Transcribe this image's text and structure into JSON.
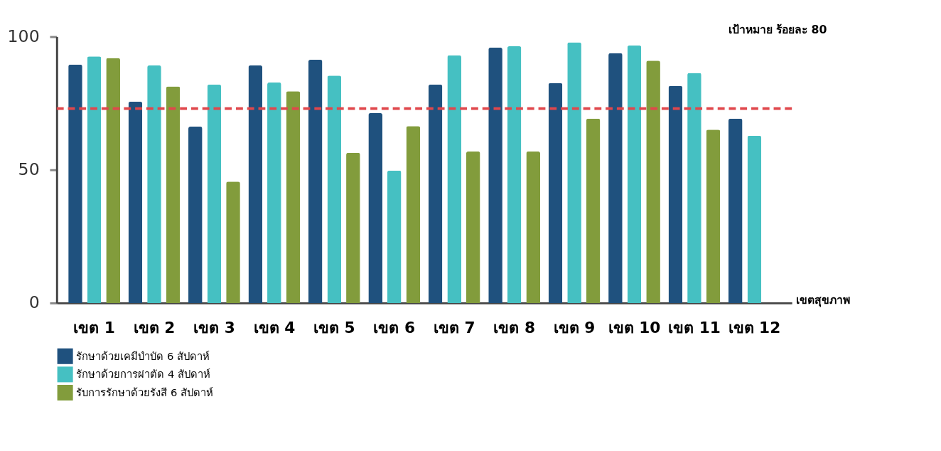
{
  "chart_data": {
    "type": "bar",
    "categories": [
      "เขต 1",
      "เขต 2",
      "เขต 3",
      "เขต 4",
      "เขต 5",
      "เขต 6",
      "เขต 7",
      "เขต 8",
      "เขต 9",
      "เขต 10",
      "เขต 11",
      "เขต 12"
    ],
    "xlabel": "เขตสุขภาพ",
    "series": [
      {
        "name": "รักษาด้วยเคมีบำบัด 6 สัปดาห์",
        "color": "#1f517e",
        "values": [
          89.5,
          75.6,
          66.2,
          89.2,
          91.3,
          71.3,
          82,
          95.9,
          82.6,
          93.8,
          81.5,
          69.2
        ]
      },
      {
        "name": "รักษาด้วยการผ่าตัด 4 สัปดาห์",
        "color": "#45c0c2",
        "values": [
          92.6,
          89.2,
          82,
          82.8,
          85.4,
          49.7,
          93,
          96.4,
          97.9,
          96.7,
          86.4,
          62.8
        ]
      },
      {
        "name": "รับการรักษาด้วยรังสี 6 สัปดาห์",
        "color": "#829c3c",
        "values": [
          92,
          81.3,
          45.6,
          79.5,
          56.4,
          66.4,
          56.9,
          56.9,
          69.2,
          91,
          65.1,
          null
        ]
      }
    ],
    "ylim": [
      0,
      100
    ],
    "yticks": [
      0,
      50,
      100
    ],
    "ref_lines": [
      {
        "axis": "y",
        "value": 73,
        "label": null,
        "color": "#e0474c",
        "line_style": "dashed"
      }
    ],
    "annotations": [
      "เป้าหมาย ร้อยละ 80"
    ],
    "grid": false,
    "legend": "bottom"
  }
}
